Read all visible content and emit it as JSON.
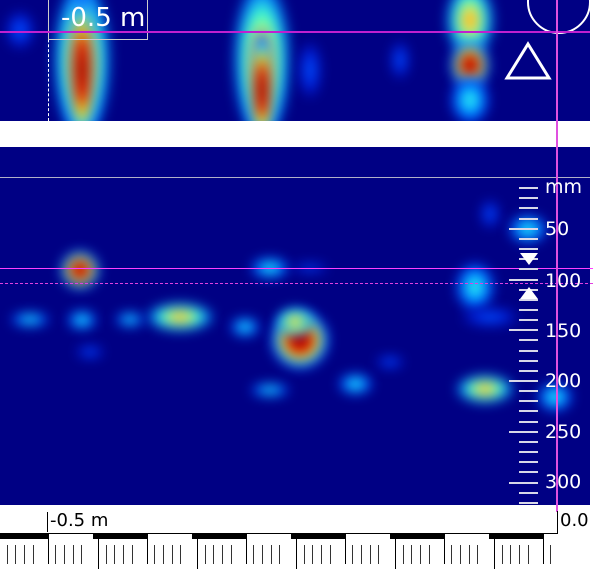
{
  "top_scan": {
    "position_label": "-0.5 m",
    "icons": [
      "half-circle-icon",
      "triangle-outline-icon"
    ]
  },
  "depth_scale": {
    "unit": "mm",
    "labels": [
      "50",
      "100",
      "150",
      "200",
      "250",
      "300"
    ],
    "icons": [
      "depth-marker-down-icon",
      "depth-marker-up-icon"
    ]
  },
  "distance_ruler": {
    "start_label": "-0.5 m",
    "end_label": "0.0"
  },
  "colors": {
    "background": "#000084",
    "cursor": "#e040e0",
    "hot": "#800000"
  }
}
